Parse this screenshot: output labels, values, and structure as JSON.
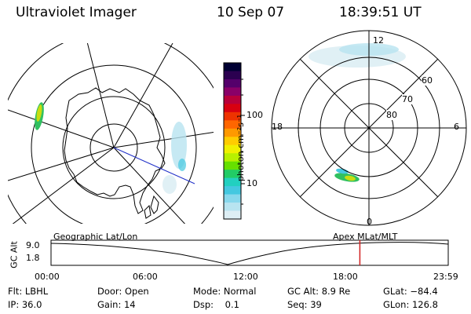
{
  "header": {
    "instrument": "Ultraviolet Imager",
    "date": "10 Sep 07",
    "time": "18:39:51 UT"
  },
  "colorbar": {
    "label": "photon cm⁻²s⁻¹",
    "ticks": [
      "100",
      "10"
    ],
    "colors": [
      "#000033",
      "#2b0050",
      "#55006b",
      "#8a0068",
      "#b8003a",
      "#d80010",
      "#ee3300",
      "#ff6600",
      "#ff9900",
      "#ffcc00",
      "#f0f000",
      "#b8f000",
      "#66e000",
      "#22cc66",
      "#22d0c0",
      "#44c8e0",
      "#88d8ec",
      "#b8e4f0",
      "#ddeef4"
    ]
  },
  "polar_plot": {
    "lat_labels": [
      "60",
      "70",
      "80"
    ],
    "mlt_labels": {
      "top": "12",
      "left": "18",
      "right": "6",
      "bottom": "0"
    }
  },
  "geo_plot": {},
  "timeline": {
    "left_label": "Geographic Lat/Lon",
    "right_label": "Apex MLat/MLT",
    "axis_title": "GC Alt",
    "ymax": "9.0",
    "ymin": "1.8",
    "x_ticks": [
      "00:00",
      "06:00",
      "12:00",
      "18:00",
      "23:59"
    ],
    "current_marker_hour": 18.66
  },
  "info": {
    "flt": "Flt: LBHL",
    "ip": "IP: 36.0",
    "door": "Door: Open",
    "gain": "Gain: 14",
    "mode": "Mode: Normal",
    "dsp": "Dsp:    0.1",
    "gcalt": "GC Alt: 8.9 Re",
    "seq": "Seq: 39",
    "glat": "GLat: −84.4",
    "glon": "GLon: 126.8"
  }
}
